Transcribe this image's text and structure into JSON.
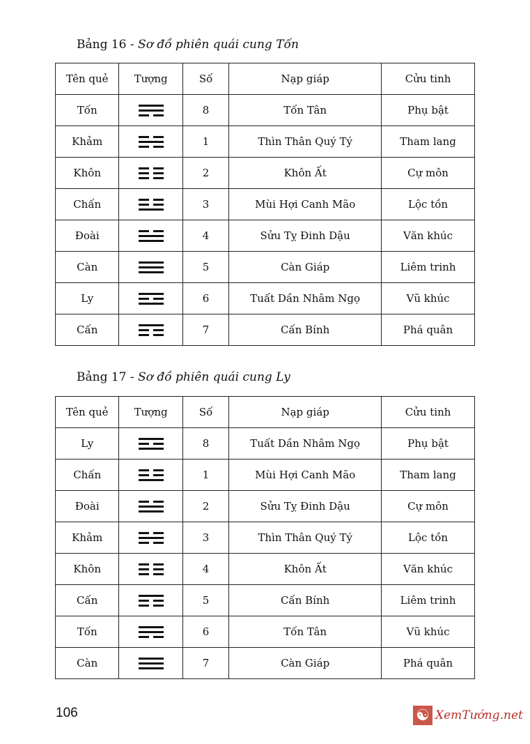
{
  "tables": [
    {
      "label": "Bảng 16 - ",
      "title": "Sơ đồ phiên quái cung Tốn",
      "headers": [
        "Tên quẻ",
        "Tượng",
        "Số",
        "Nạp giáp",
        "Cửu tinh"
      ],
      "rows": [
        {
          "name": "Tốn",
          "lines": [
            1,
            1,
            0
          ],
          "num": "8",
          "napgiap": "Tốn Tân",
          "star": "Phụ bật"
        },
        {
          "name": "Khảm",
          "lines": [
            0,
            1,
            0
          ],
          "num": "1",
          "napgiap": "Thìn Thân Quý Tý",
          "star": "Tham lang"
        },
        {
          "name": "Khôn",
          "lines": [
            0,
            0,
            0
          ],
          "num": "2",
          "napgiap": "Khôn Ất",
          "star": "Cự môn"
        },
        {
          "name": "Chấn",
          "lines": [
            0,
            0,
            1
          ],
          "num": "3",
          "napgiap": "Mùi Hợi Canh Mão",
          "star": "Lộc tồn"
        },
        {
          "name": "Đoài",
          "lines": [
            0,
            1,
            1
          ],
          "num": "4",
          "napgiap": "Sửu Tỵ Đinh Dậu",
          "star": "Văn khúc"
        },
        {
          "name": "Càn",
          "lines": [
            1,
            1,
            1
          ],
          "num": "5",
          "napgiap": "Càn Giáp",
          "star": "Liêm trinh"
        },
        {
          "name": "Ly",
          "lines": [
            1,
            0,
            1
          ],
          "num": "6",
          "napgiap": "Tuất Dần Nhâm Ngọ",
          "star": "Vũ khúc"
        },
        {
          "name": "Cấn",
          "lines": [
            1,
            0,
            0
          ],
          "num": "7",
          "napgiap": "Cấn Bính",
          "star": "Phá quân"
        }
      ]
    },
    {
      "label": "Bảng 17 - ",
      "title": "Sơ đồ phiên quái cung Ly",
      "headers": [
        "Tên quẻ",
        "Tượng",
        "Số",
        "Nạp giáp",
        "Cửu tinh"
      ],
      "rows": [
        {
          "name": "Ly",
          "lines": [
            1,
            0,
            1
          ],
          "num": "8",
          "napgiap": "Tuất Dần Nhâm Ngọ",
          "star": "Phụ bật"
        },
        {
          "name": "Chấn",
          "lines": [
            0,
            0,
            1
          ],
          "num": "1",
          "napgiap": "Mùi Hợi Canh Mão",
          "star": "Tham lang"
        },
        {
          "name": "Đoài",
          "lines": [
            0,
            1,
            1
          ],
          "num": "2",
          "napgiap": "Sửu Tỵ Đinh Dậu",
          "star": "Cự môn"
        },
        {
          "name": "Khảm",
          "lines": [
            0,
            1,
            0
          ],
          "num": "3",
          "napgiap": "Thìn Thân Quý Tý",
          "star": "Lộc tồn"
        },
        {
          "name": "Khôn",
          "lines": [
            0,
            0,
            0
          ],
          "num": "4",
          "napgiap": "Khôn Ất",
          "star": "Văn khúc"
        },
        {
          "name": "Cấn",
          "lines": [
            1,
            0,
            0
          ],
          "num": "5",
          "napgiap": "Cấn Bính",
          "star": "Liêm trinh"
        },
        {
          "name": "Tốn",
          "lines": [
            1,
            1,
            0
          ],
          "num": "6",
          "napgiap": "Tốn Tân",
          "star": "Vũ khúc"
        },
        {
          "name": "Càn",
          "lines": [
            1,
            1,
            1
          ],
          "num": "7",
          "napgiap": "Càn Giáp",
          "star": "Phá quân"
        }
      ]
    }
  ],
  "page_number": "106",
  "watermark": "XemTướng.net",
  "colors": {
    "watermark": "#b8322a"
  }
}
